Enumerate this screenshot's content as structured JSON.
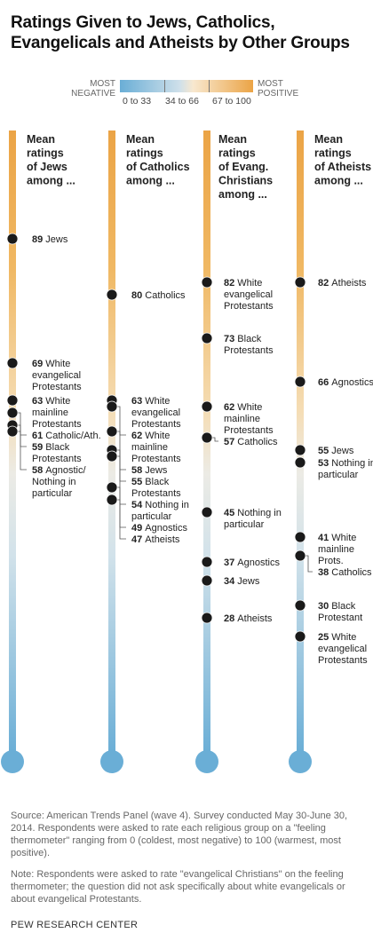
{
  "title": "Ratings Given to Jews, Catholics, Evangelicals and Atheists by Other Groups",
  "legend": {
    "left_label": [
      "MOST",
      "NEGATIVE"
    ],
    "right_label": [
      "MOST",
      "POSITIVE"
    ],
    "ranges": [
      "0 to 33",
      "34 to 66",
      "67 to 100"
    ],
    "color_negative": "#6aaed6",
    "color_positive": "#eba446"
  },
  "chart_data": {
    "type": "scatter",
    "y_scale": "feeling thermometer",
    "ylim": [
      0,
      100
    ],
    "panels": [
      {
        "header": [
          "Mean",
          "ratings",
          "of Jews",
          "among ..."
        ],
        "points": [
          {
            "value": 89,
            "label": [
              "Jews"
            ]
          },
          {
            "value": 69,
            "label": [
              "White",
              "evangelical",
              "Protestants"
            ]
          },
          {
            "value": 63,
            "label": [
              "White",
              "mainline",
              "Protestants"
            ]
          },
          {
            "value": 61,
            "label": [
              "Catholic/Ath."
            ]
          },
          {
            "value": 59,
            "label": [
              "Black",
              "Protestants"
            ]
          },
          {
            "value": 58,
            "label": [
              "Agnostic/",
              "Nothing in",
              "particular"
            ]
          }
        ]
      },
      {
        "header": [
          "Mean",
          "ratings",
          "of Catholics",
          "among ..."
        ],
        "points": [
          {
            "value": 80,
            "label": [
              "Catholics"
            ]
          },
          {
            "value": 63,
            "label": [
              "White",
              "evangelical",
              "Protestants"
            ]
          },
          {
            "value": 62,
            "label": [
              "White",
              "mainline",
              "Protestants"
            ]
          },
          {
            "value": 58,
            "label": [
              "Jews"
            ]
          },
          {
            "value": 55,
            "label": [
              "Black",
              "Protestants"
            ]
          },
          {
            "value": 54,
            "label": [
              "Nothing in",
              "particular"
            ]
          },
          {
            "value": 49,
            "label": [
              "Agnostics"
            ]
          },
          {
            "value": 47,
            "label": [
              "Atheists"
            ]
          }
        ]
      },
      {
        "header": [
          "Mean",
          "ratings",
          "of Evang.",
          "Christians",
          "among ..."
        ],
        "points": [
          {
            "value": 82,
            "label": [
              "White",
              "evangelical",
              "Protestants"
            ]
          },
          {
            "value": 73,
            "label": [
              "Black",
              "Protestants"
            ]
          },
          {
            "value": 62,
            "label": [
              "White",
              "mainline",
              "Protestants"
            ]
          },
          {
            "value": 57,
            "label": [
              "Catholics"
            ]
          },
          {
            "value": 45,
            "label": [
              "Nothing in",
              "particular"
            ]
          },
          {
            "value": 37,
            "label": [
              "Agnostics"
            ]
          },
          {
            "value": 34,
            "label": [
              "Jews"
            ]
          },
          {
            "value": 28,
            "label": [
              "Atheists"
            ]
          }
        ]
      },
      {
        "header": [
          "Mean",
          "ratings",
          "of Atheists",
          "among ..."
        ],
        "points": [
          {
            "value": 82,
            "label": [
              "Atheists"
            ]
          },
          {
            "value": 66,
            "label": [
              "Agnostics"
            ]
          },
          {
            "value": 55,
            "label": [
              "Jews"
            ]
          },
          {
            "value": 53,
            "label": [
              "Nothing in",
              "particular"
            ]
          },
          {
            "value": 41,
            "label": [
              "White",
              "mainline",
              "Prots."
            ]
          },
          {
            "value": 38,
            "label": [
              "Catholics"
            ]
          },
          {
            "value": 30,
            "label": [
              "Black",
              "Protestant"
            ]
          },
          {
            "value": 25,
            "label": [
              "White",
              "evangelical",
              "Protestants"
            ]
          }
        ]
      }
    ]
  },
  "notes": {
    "source": "Source: American Trends Panel (wave 4). Survey conducted May 30-June 30, 2014. Respondents were asked to rate each religious group on a \"feeling thermometer\" ranging from 0 (coldest, most negative) to 100 (warmest, most positive).",
    "note": "Note: Respondents were asked to rate \"evangelical Christians\" on the feeling thermometer; the question did not ask specifically about white evangelicals or about evangelical Protestants."
  },
  "credit": "PEW RESEARCH CENTER"
}
